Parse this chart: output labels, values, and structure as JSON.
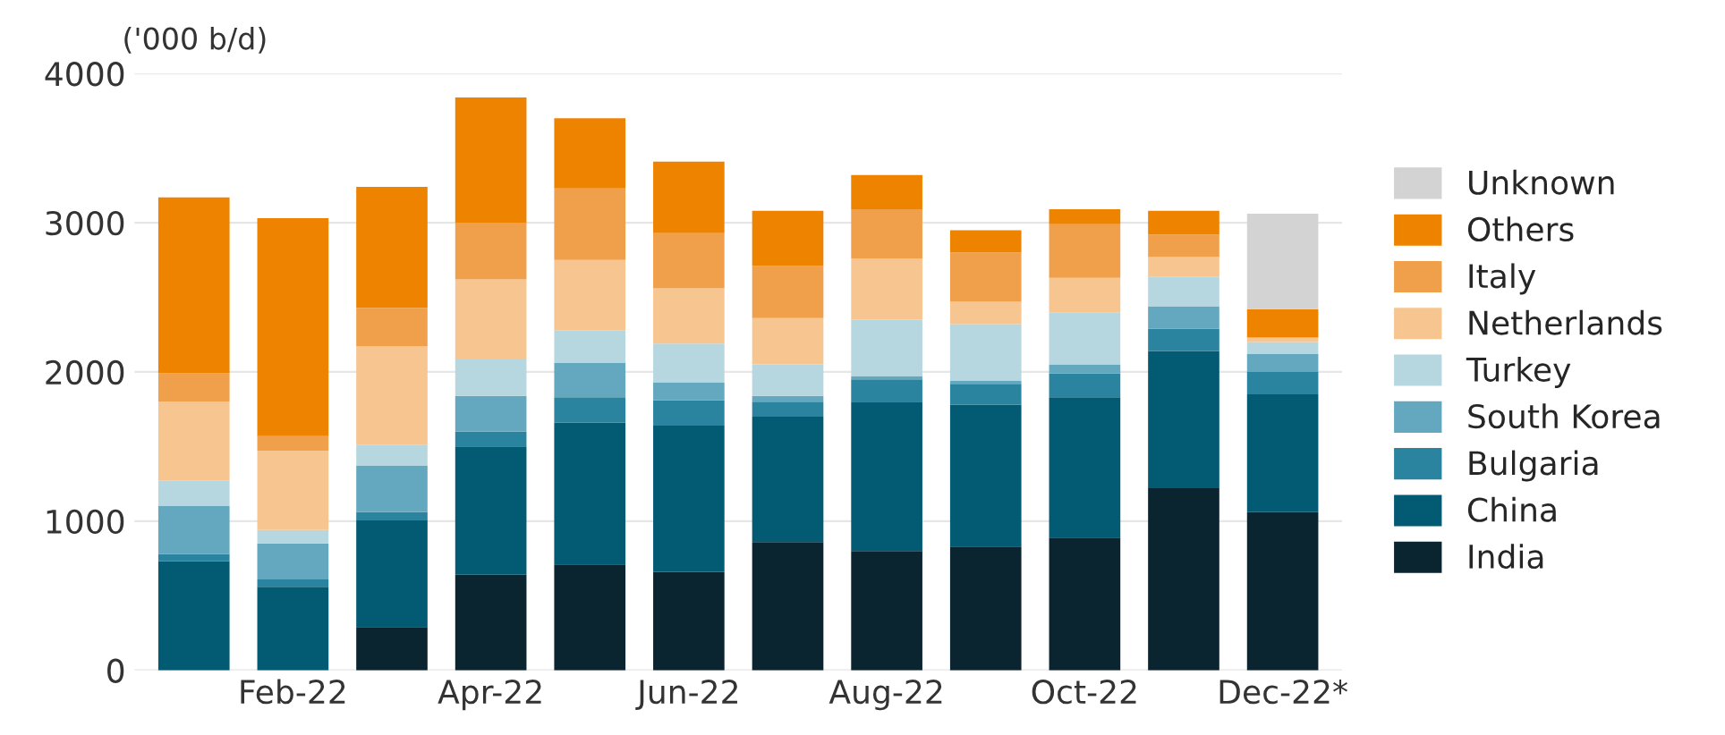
{
  "chart_data": {
    "type": "bar",
    "stacked": true,
    "ylabel": "('000 b/d)",
    "categories": [
      null,
      "Feb-22",
      null,
      "Apr-22",
      null,
      "Jun-22",
      null,
      "Aug-22",
      null,
      "Oct-22",
      null,
      "Dec-22*"
    ],
    "series": [
      {
        "name": "India",
        "color": "#0b2530",
        "values": [
          null,
          null,
          290,
          640,
          710,
          660,
          860,
          800,
          830,
          890,
          1220,
          1060
        ]
      },
      {
        "name": "China",
        "color": "#035a73",
        "values": [
          730,
          560,
          720,
          860,
          950,
          980,
          840,
          1000,
          950,
          940,
          920,
          790
        ]
      },
      {
        "name": "Bulgaria",
        "color": "#2a84a0",
        "values": [
          50,
          50,
          50,
          100,
          170,
          170,
          100,
          150,
          140,
          160,
          150,
          150
        ]
      },
      {
        "name": "South Korea",
        "color": "#64a8c0",
        "values": [
          320,
          240,
          310,
          240,
          230,
          120,
          40,
          20,
          20,
          60,
          150,
          120
        ]
      },
      {
        "name": "Turkey",
        "color": "#b7d7e0",
        "values": [
          170,
          90,
          140,
          250,
          220,
          260,
          210,
          380,
          380,
          350,
          200,
          80
        ]
      },
      {
        "name": "Netherlands",
        "color": "#f7c58f",
        "values": [
          530,
          530,
          660,
          530,
          470,
          370,
          310,
          410,
          150,
          230,
          130,
          30
        ]
      },
      {
        "name": "Italy",
        "color": "#f0a04a",
        "values": [
          190,
          100,
          260,
          380,
          480,
          370,
          350,
          330,
          330,
          360,
          150,
          null
        ]
      },
      {
        "name": "Others",
        "color": "#ee8300",
        "values": [
          1180,
          1460,
          810,
          840,
          470,
          480,
          370,
          230,
          150,
          100,
          160,
          190
        ]
      },
      {
        "name": "Unknown",
        "color": "#d3d3d3",
        "values": [
          null,
          null,
          null,
          null,
          null,
          null,
          null,
          null,
          null,
          null,
          null,
          640
        ]
      }
    ],
    "ylim": [
      0,
      4000
    ],
    "yticks": [
      0,
      1000,
      2000,
      3000,
      4000
    ],
    "grid": "y",
    "legend": "right"
  }
}
